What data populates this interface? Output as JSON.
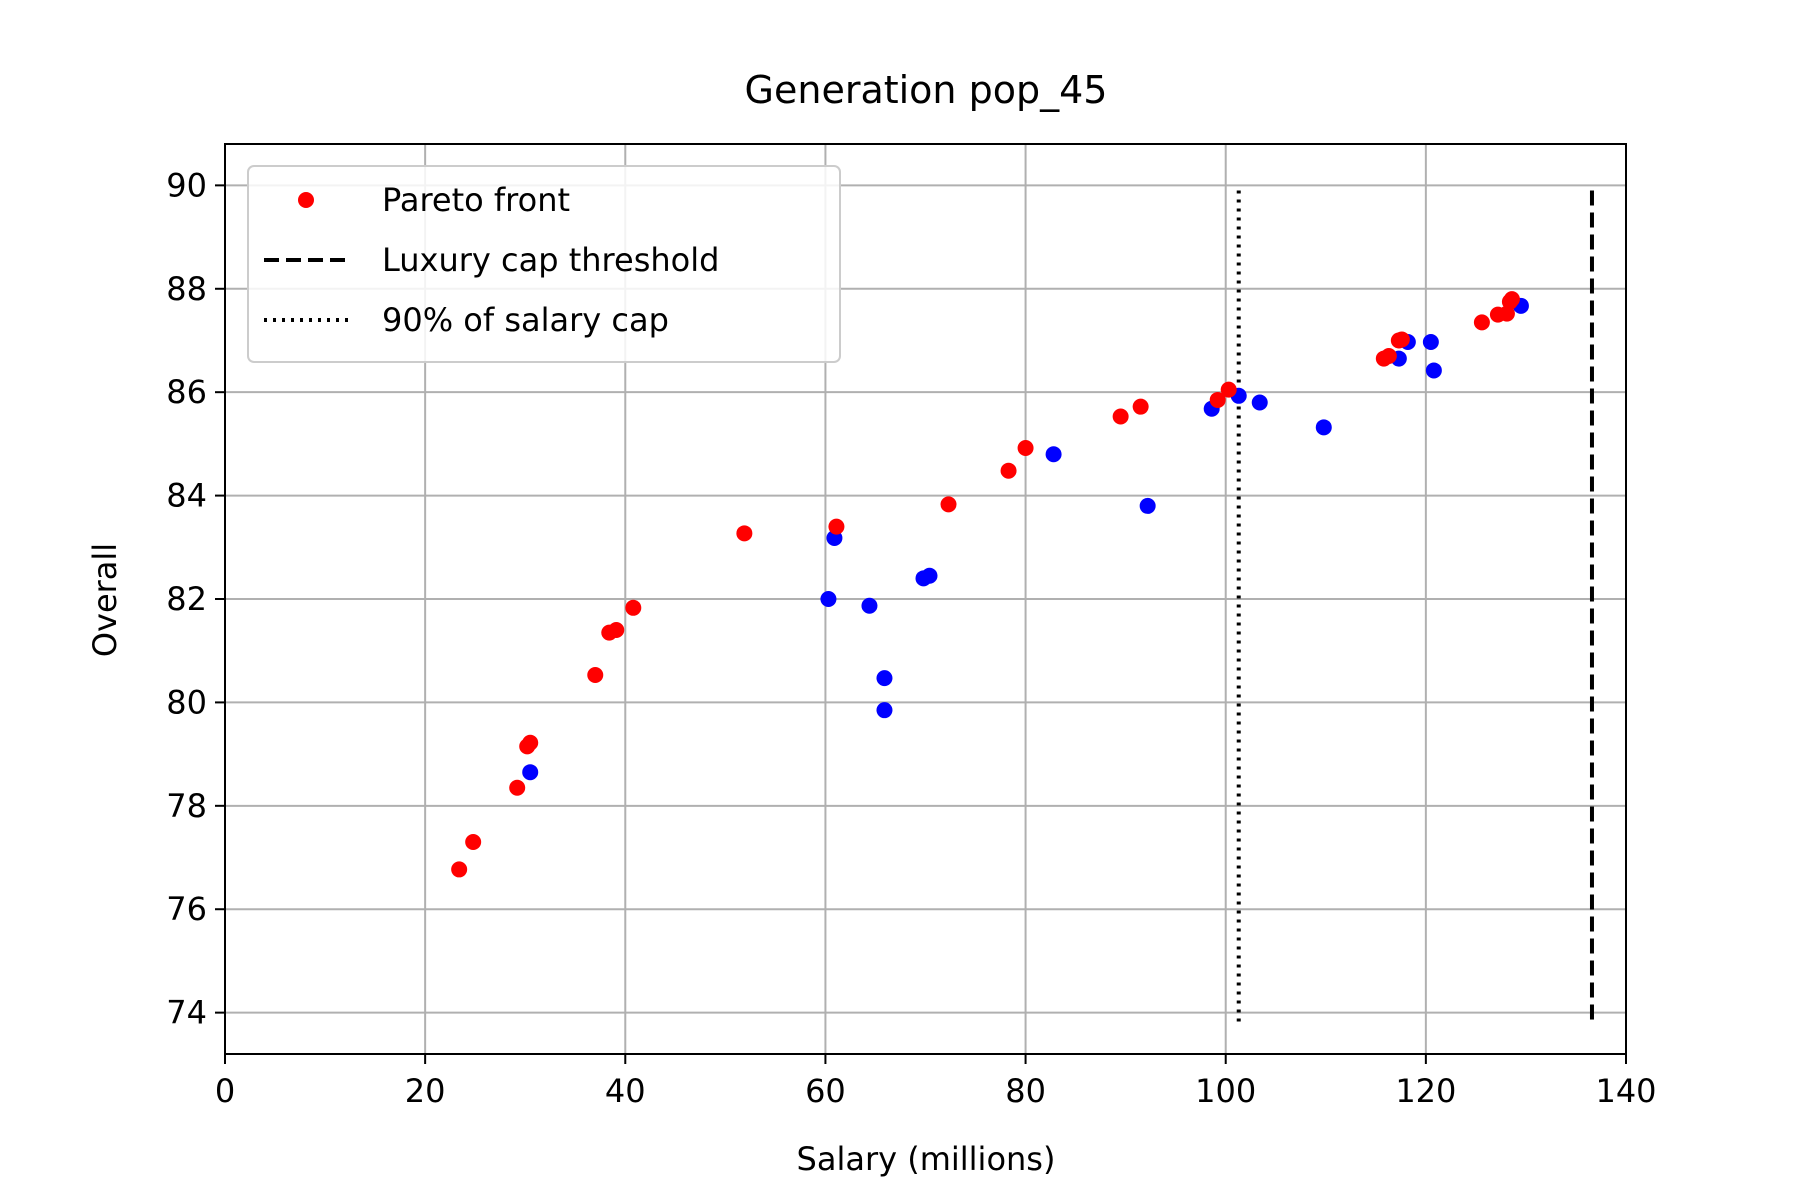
{
  "chart_data": {
    "type": "scatter",
    "title": "Generation pop_45",
    "xlabel": "Salary (millions)",
    "ylabel": "Overall",
    "xlim": [
      0,
      140
    ],
    "ylim": [
      73.2,
      90.8
    ],
    "xticks": [
      0,
      20,
      40,
      60,
      80,
      100,
      120,
      140
    ],
    "yticks": [
      74,
      76,
      78,
      80,
      82,
      84,
      86,
      88,
      90
    ],
    "grid": true,
    "legend_position": "top-left",
    "colors": {
      "pareto": "#ff0000",
      "population": "#0000ff",
      "lines": "#000000",
      "grid": "#b0b0b0"
    },
    "series": [
      {
        "name": "",
        "role": "population",
        "color": "#0000ff",
        "points": [
          [
            30.5,
            78.65
          ],
          [
            60.3,
            82.0
          ],
          [
            60.9,
            83.18
          ],
          [
            64.4,
            81.87
          ],
          [
            65.9,
            80.47
          ],
          [
            65.9,
            79.85
          ],
          [
            69.8,
            82.4
          ],
          [
            70.4,
            82.45
          ],
          [
            82.8,
            84.8
          ],
          [
            92.2,
            83.8
          ],
          [
            98.6,
            85.68
          ],
          [
            101.3,
            85.93
          ],
          [
            103.4,
            85.8
          ],
          [
            109.8,
            85.32
          ],
          [
            117.3,
            86.65
          ],
          [
            118.2,
            86.97
          ],
          [
            120.5,
            86.97
          ],
          [
            120.8,
            86.42
          ],
          [
            129.5,
            87.67
          ]
        ]
      },
      {
        "name": "Pareto front",
        "role": "pareto",
        "color": "#ff0000",
        "points": [
          [
            23.4,
            76.77
          ],
          [
            24.8,
            77.3
          ],
          [
            29.2,
            78.35
          ],
          [
            30.2,
            79.15
          ],
          [
            30.5,
            79.22
          ],
          [
            37.0,
            80.53
          ],
          [
            38.4,
            81.35
          ],
          [
            39.1,
            81.4
          ],
          [
            40.8,
            81.83
          ],
          [
            51.9,
            83.27
          ],
          [
            61.1,
            83.4
          ],
          [
            72.3,
            83.83
          ],
          [
            78.3,
            84.48
          ],
          [
            80.0,
            84.92
          ],
          [
            89.5,
            85.53
          ],
          [
            91.5,
            85.72
          ],
          [
            99.2,
            85.85
          ],
          [
            100.3,
            86.05
          ],
          [
            115.8,
            86.65
          ],
          [
            116.3,
            86.7
          ],
          [
            117.3,
            87.0
          ],
          [
            117.6,
            87.02
          ],
          [
            125.6,
            87.35
          ],
          [
            127.2,
            87.5
          ],
          [
            128.1,
            87.52
          ],
          [
            128.4,
            87.75
          ],
          [
            128.6,
            87.8
          ]
        ]
      }
    ],
    "vlines": [
      {
        "label": "Luxury cap threshold",
        "x": 136.6,
        "style": "dashed",
        "ymin": 73.8,
        "ymax": 89.9
      },
      {
        "label": "90% of salary cap",
        "x": 101.3,
        "style": "dotted",
        "ymin": 73.8,
        "ymax": 89.9
      }
    ],
    "legend": [
      {
        "label": "Pareto front",
        "kind": "marker",
        "color": "#ff0000"
      },
      {
        "label": "Luxury cap threshold",
        "kind": "dashed",
        "color": "#000000"
      },
      {
        "label": "90% of salary cap",
        "kind": "dotted",
        "color": "#000000"
      }
    ]
  }
}
